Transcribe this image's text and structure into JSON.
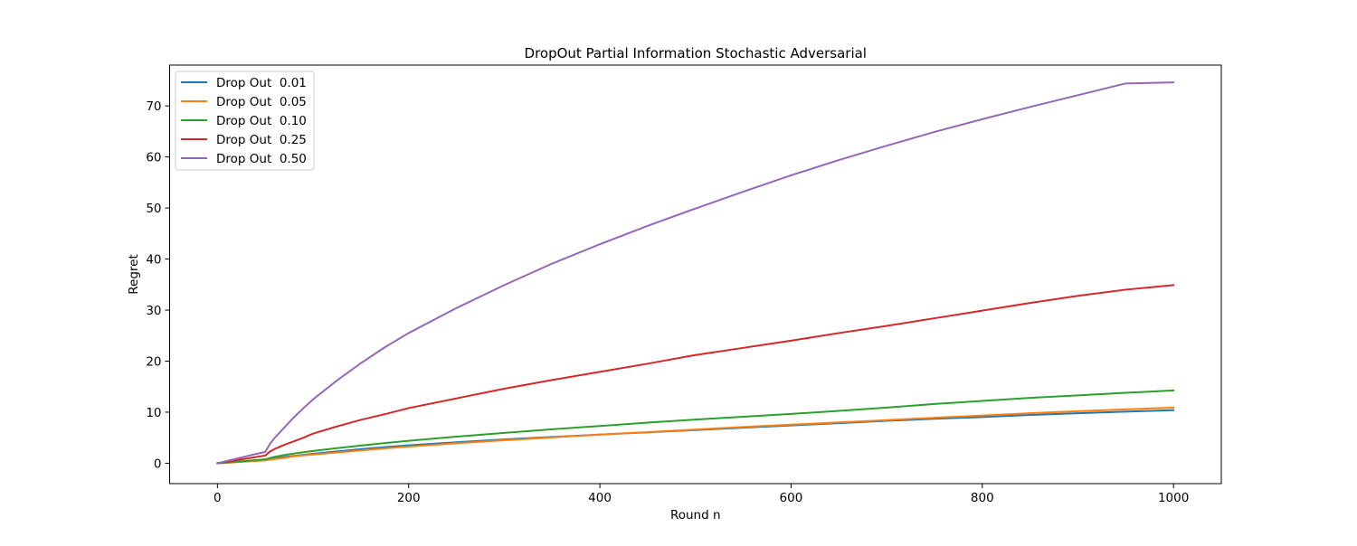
{
  "chart_data": {
    "type": "line",
    "title": "DropOut Partial Information Stochastic Adversarial",
    "xlabel": "Round n",
    "ylabel": "Regret",
    "xlim": [
      -50,
      1050
    ],
    "ylim": [
      -4,
      78
    ],
    "xticks": [
      0,
      200,
      400,
      600,
      800,
      1000
    ],
    "yticks": [
      0,
      10,
      20,
      30,
      40,
      50,
      60,
      70
    ],
    "grid": false,
    "legend_position": "upper-left",
    "x": [
      0,
      10,
      20,
      30,
      40,
      50,
      55,
      60,
      70,
      80,
      90,
      100,
      125,
      150,
      175,
      200,
      250,
      300,
      350,
      400,
      450,
      500,
      550,
      600,
      650,
      700,
      750,
      800,
      850,
      900,
      950,
      1000
    ],
    "series": [
      {
        "name": "Drop Out  0.01",
        "color": "#1f77b4",
        "values": [
          0,
          0.12,
          0.24,
          0.36,
          0.5,
          0.62,
          0.8,
          0.95,
          1.2,
          1.45,
          1.65,
          1.85,
          2.3,
          2.75,
          3.15,
          3.5,
          4.1,
          4.65,
          5.15,
          5.6,
          6.05,
          6.5,
          6.95,
          7.4,
          7.85,
          8.3,
          8.7,
          9.05,
          9.45,
          9.8,
          10.1,
          10.4
        ]
      },
      {
        "name": "Drop Out  0.05",
        "color": "#ff7f0e",
        "values": [
          0,
          0.1,
          0.2,
          0.32,
          0.45,
          0.55,
          0.7,
          0.82,
          1.05,
          1.35,
          1.55,
          1.7,
          2.1,
          2.5,
          2.9,
          3.25,
          3.9,
          4.5,
          5.05,
          5.6,
          6.1,
          6.6,
          7.1,
          7.55,
          8.0,
          8.45,
          8.9,
          9.35,
          9.8,
          10.2,
          10.55,
          10.9
        ]
      },
      {
        "name": "Drop Out  0.10",
        "color": "#2ca02c",
        "values": [
          0,
          0.15,
          0.3,
          0.45,
          0.6,
          0.75,
          1.0,
          1.25,
          1.6,
          1.9,
          2.15,
          2.4,
          2.95,
          3.45,
          3.95,
          4.4,
          5.2,
          5.95,
          6.65,
          7.3,
          7.95,
          8.55,
          9.1,
          9.65,
          10.25,
          10.9,
          11.6,
          12.2,
          12.8,
          13.3,
          13.8,
          14.25
        ]
      },
      {
        "name": "Drop Out  0.25",
        "color": "#d62728",
        "values": [
          0,
          0.3,
          0.6,
          0.9,
          1.2,
          1.5,
          2.3,
          2.8,
          3.6,
          4.3,
          5.0,
          5.8,
          7.2,
          8.5,
          9.6,
          10.8,
          12.7,
          14.6,
          16.3,
          17.9,
          19.5,
          21.2,
          22.6,
          24.0,
          25.5,
          26.9,
          28.4,
          29.9,
          31.4,
          32.8,
          34.0,
          34.9
        ]
      },
      {
        "name": "Drop Out  0.50",
        "color": "#9467bd",
        "values": [
          0,
          0.45,
          0.9,
          1.35,
          1.8,
          2.2,
          3.8,
          5.0,
          7.0,
          9.0,
          10.8,
          12.5,
          16.2,
          19.6,
          22.7,
          25.5,
          30.4,
          34.9,
          39.1,
          42.9,
          46.5,
          49.9,
          53.2,
          56.4,
          59.4,
          62.2,
          64.9,
          67.4,
          69.8,
          72.1,
          74.4,
          74.6
        ]
      }
    ]
  }
}
